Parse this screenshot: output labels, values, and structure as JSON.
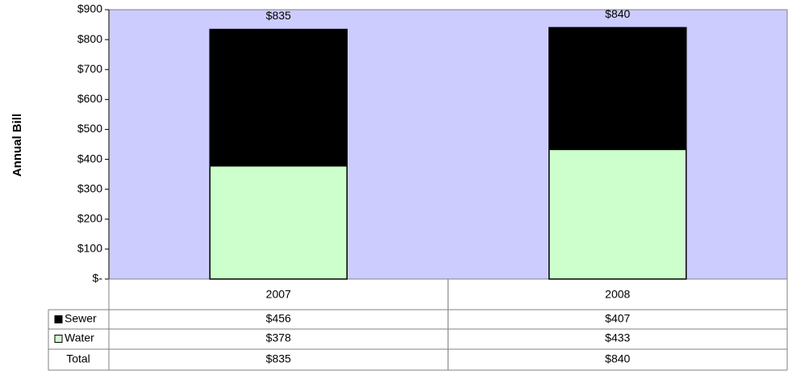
{
  "chart_data": {
    "type": "stacked_bar",
    "y_label": "Annual Bill",
    "categories": [
      "2007",
      "2008"
    ],
    "series": [
      {
        "name": "Water",
        "color": "#ccffcc",
        "values": [
          378,
          433
        ],
        "value_labels": [
          "$378",
          "$433"
        ]
      },
      {
        "name": "Sewer",
        "color": "#000000",
        "values": [
          456,
          407
        ],
        "value_labels": [
          "$456",
          "$407"
        ]
      }
    ],
    "total_name": "Total",
    "totals": [
      835,
      840
    ],
    "totals_labels": [
      "$835",
      "$840"
    ],
    "ylim": [
      0,
      900
    ],
    "yticks": [
      {
        "value": 0,
        "label": "$-"
      },
      {
        "value": 100,
        "label": "$100"
      },
      {
        "value": 200,
        "label": "$200"
      },
      {
        "value": 300,
        "label": "$300"
      },
      {
        "value": 400,
        "label": "$400"
      },
      {
        "value": 500,
        "label": "$500"
      },
      {
        "value": 600,
        "label": "$600"
      },
      {
        "value": 700,
        "label": "$700"
      },
      {
        "value": 800,
        "label": "$800"
      },
      {
        "value": 900,
        "label": "$900"
      }
    ],
    "plot_background": "#ccccff"
  }
}
